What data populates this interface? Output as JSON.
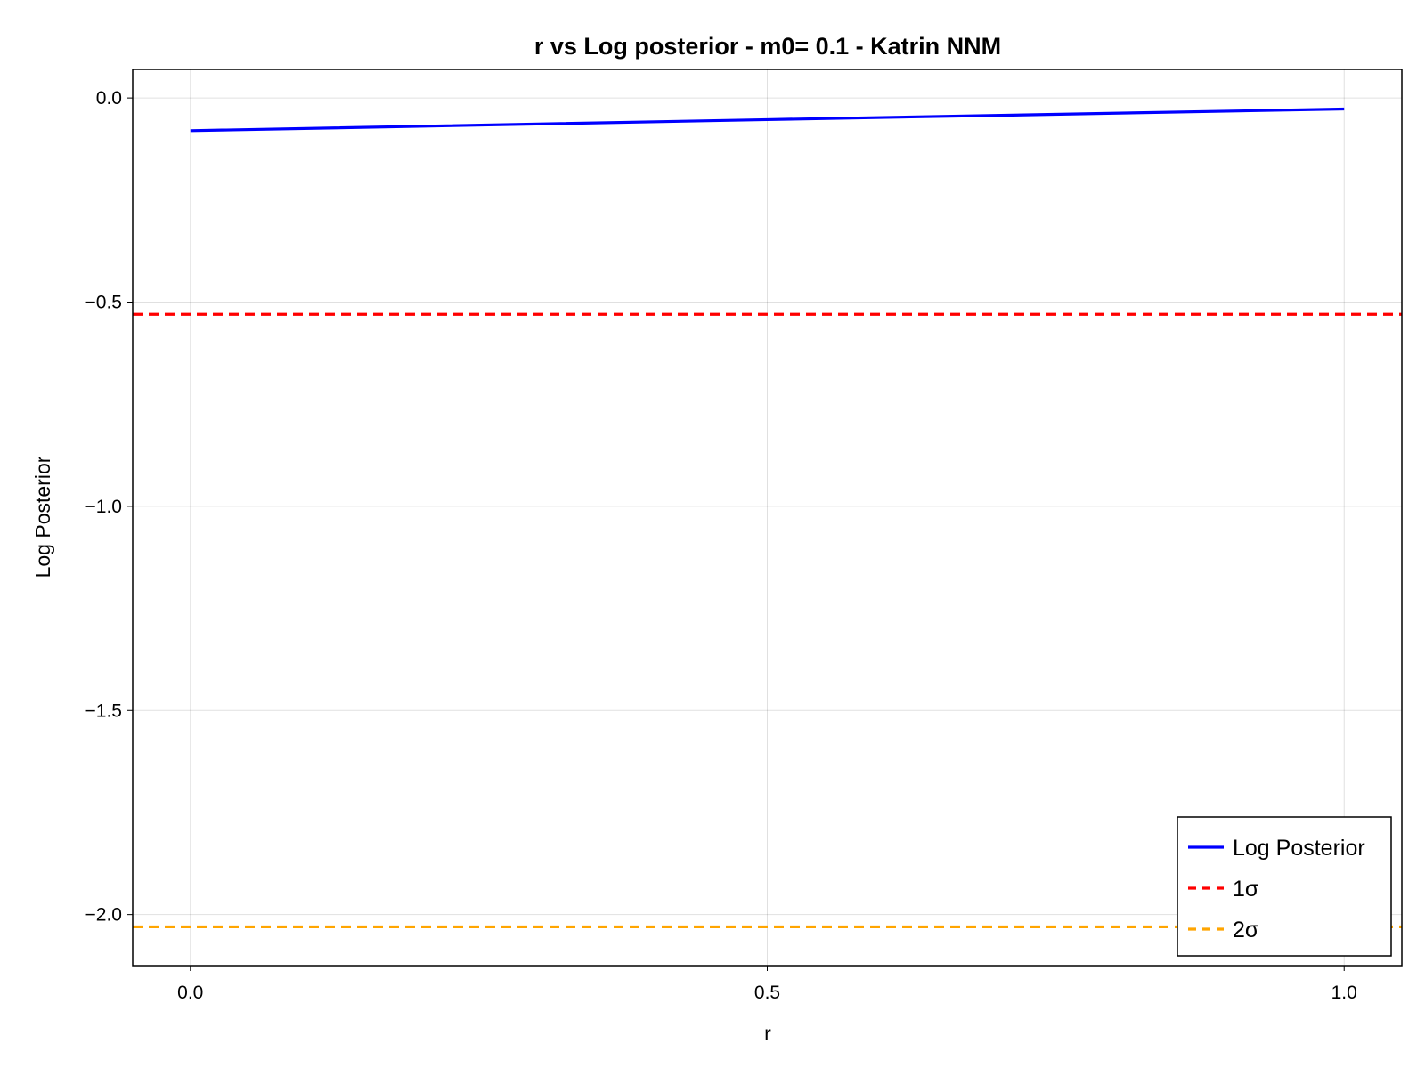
{
  "chart_data": {
    "type": "line",
    "title": "r vs Log posterior - m0= 0.1 - Katrin NNM",
    "xlabel": "r",
    "ylabel": "Log Posterior",
    "xlim": [
      -0.05,
      1.05
    ],
    "ylim": [
      -2.125,
      0.07
    ],
    "xticks": [
      0.0,
      0.5,
      1.0
    ],
    "xtick_labels": [
      "0.0",
      "0.5",
      "1.0"
    ],
    "yticks": [
      0.0,
      -0.5,
      -1.0,
      -1.5,
      -2.0
    ],
    "ytick_labels": [
      "0.0",
      "−0.5",
      "−1.0",
      "−1.5",
      "−2.0"
    ],
    "grid": true,
    "legend_position": "bottom-right",
    "series": [
      {
        "name": "Log Posterior",
        "kind": "line",
        "style": "solid",
        "color": "#0000ff",
        "x": [
          0.0,
          0.5,
          1.0
        ],
        "y": [
          -0.08,
          -0.053,
          -0.027
        ]
      },
      {
        "name": "1σ",
        "kind": "hline",
        "style": "dashed",
        "color": "#ff0000",
        "y": -0.53
      },
      {
        "name": "2σ",
        "kind": "hline",
        "style": "dashed",
        "color": "#ffa500",
        "y": -2.03
      }
    ]
  }
}
